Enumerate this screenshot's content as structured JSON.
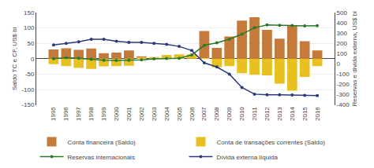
{
  "chart_data": {
    "type": "bar",
    "categories": [
      "1995",
      "1996",
      "1997",
      "1998",
      "1999",
      "2000",
      "2001",
      "2002",
      "2003",
      "2004",
      "2005",
      "2006",
      "2007",
      "2008",
      "2009",
      "2010",
      "2011",
      "2012",
      "2013",
      "2014",
      "2015",
      "2016"
    ],
    "series": [
      {
        "name": "Conta financeira (Saldo)",
        "type": "bar",
        "color": "#c47a3a",
        "values": [
          30,
          34,
          29,
          33,
          18,
          20,
          27,
          8,
          5,
          2,
          3,
          0,
          90,
          35,
          72,
          124,
          135,
          94,
          65,
          109,
          57,
          27
        ]
      },
      {
        "name": "Conta de transações correntes (Saldo)",
        "type": "bar",
        "color": "#e8c020",
        "values": [
          -18,
          -24,
          -30,
          -33,
          -25,
          -24,
          -23,
          4,
          4,
          12,
          14,
          14,
          2,
          -28,
          -24,
          -47,
          -52,
          -54,
          -81,
          -104,
          -59,
          -24
        ]
      },
      {
        "name": "Reservas internacionais",
        "type": "line",
        "axis": "y2",
        "color": "#2a7a2a",
        "marker": "circle",
        "values": [
          50,
          60,
          55,
          45,
          35,
          33,
          36,
          38,
          49,
          53,
          54,
          86,
          180,
          206,
          240,
          289,
          352,
          379,
          376,
          374,
          369,
          372
        ]
      },
      {
        "name": "Dívida externa líquida",
        "type": "line",
        "axis": "y2",
        "color": "#2a3a7a",
        "marker": "circle",
        "values": [
          185,
          200,
          215,
          240,
          240,
          220,
          210,
          210,
          200,
          190,
          170,
          130,
          10,
          -30,
          -100,
          -230,
          -295,
          -302,
          -302,
          -304,
          -307,
          -310
        ]
      }
    ],
    "ylabel": "Saldo TC e CF, US$ bi",
    "y2label": "Reservas e dívida externa, US$ bi",
    "ylim": [
      -150,
      150
    ],
    "yticks": [
      -150,
      -100,
      -50,
      0,
      50,
      100,
      150
    ],
    "y2lim": [
      -400,
      500
    ],
    "y2ticks": [
      -400,
      -300,
      -200,
      -100,
      0,
      100,
      200,
      300,
      400,
      500
    ],
    "grid": true,
    "legend": "bottom"
  }
}
